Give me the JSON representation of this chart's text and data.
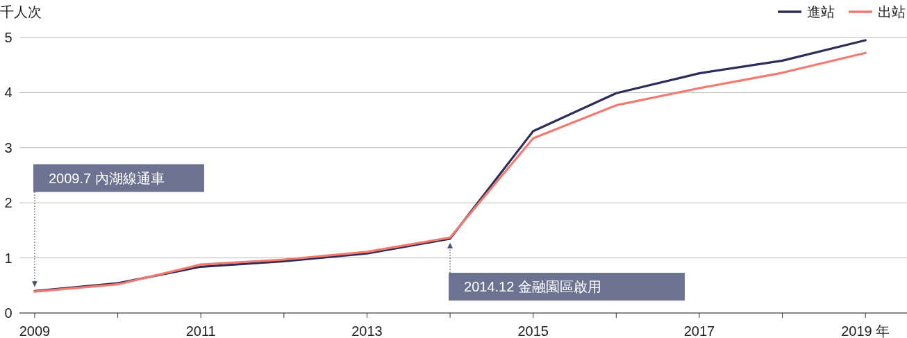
{
  "chart_data": {
    "type": "line",
    "ylabel": "千人次",
    "x": [
      2009,
      2010,
      2011,
      2012,
      2013,
      2014,
      2015,
      2016,
      2017,
      2018,
      2019
    ],
    "series": [
      {
        "name": "進站",
        "color": "#2d2d5a",
        "values": [
          0.4,
          0.54,
          0.84,
          0.94,
          1.08,
          1.35,
          3.3,
          3.99,
          4.35,
          4.58,
          4.95
        ]
      },
      {
        "name": "出站",
        "color": "#f47a70",
        "values": [
          0.39,
          0.52,
          0.88,
          0.97,
          1.11,
          1.37,
          3.17,
          3.77,
          4.08,
          4.36,
          4.72
        ]
      }
    ],
    "xlim": [
      2008.85,
      2019.5
    ],
    "ylim": [
      0,
      5
    ],
    "xticks": [
      2009,
      {
        "value": 2010,
        "label": null
      },
      2011,
      {
        "value": 2012,
        "label": null
      },
      2013,
      {
        "value": 2014,
        "label": null
      },
      2015,
      {
        "value": 2016,
        "label": null
      },
      2017,
      {
        "value": 2018,
        "label": null
      },
      {
        "value": 2019,
        "label": "2019 年"
      }
    ],
    "yticks": [
      0,
      1,
      2,
      3,
      4,
      5
    ],
    "grid": "y",
    "legend": "top right",
    "marker": "none",
    "line_style": "solid",
    "annotations": [
      {
        "text": "2009.7 內湖線通車",
        "x": 2009,
        "y": 0.4
      },
      {
        "text": "2014.12 金融園區啟用",
        "x": 2014,
        "y": 1.35
      }
    ]
  }
}
